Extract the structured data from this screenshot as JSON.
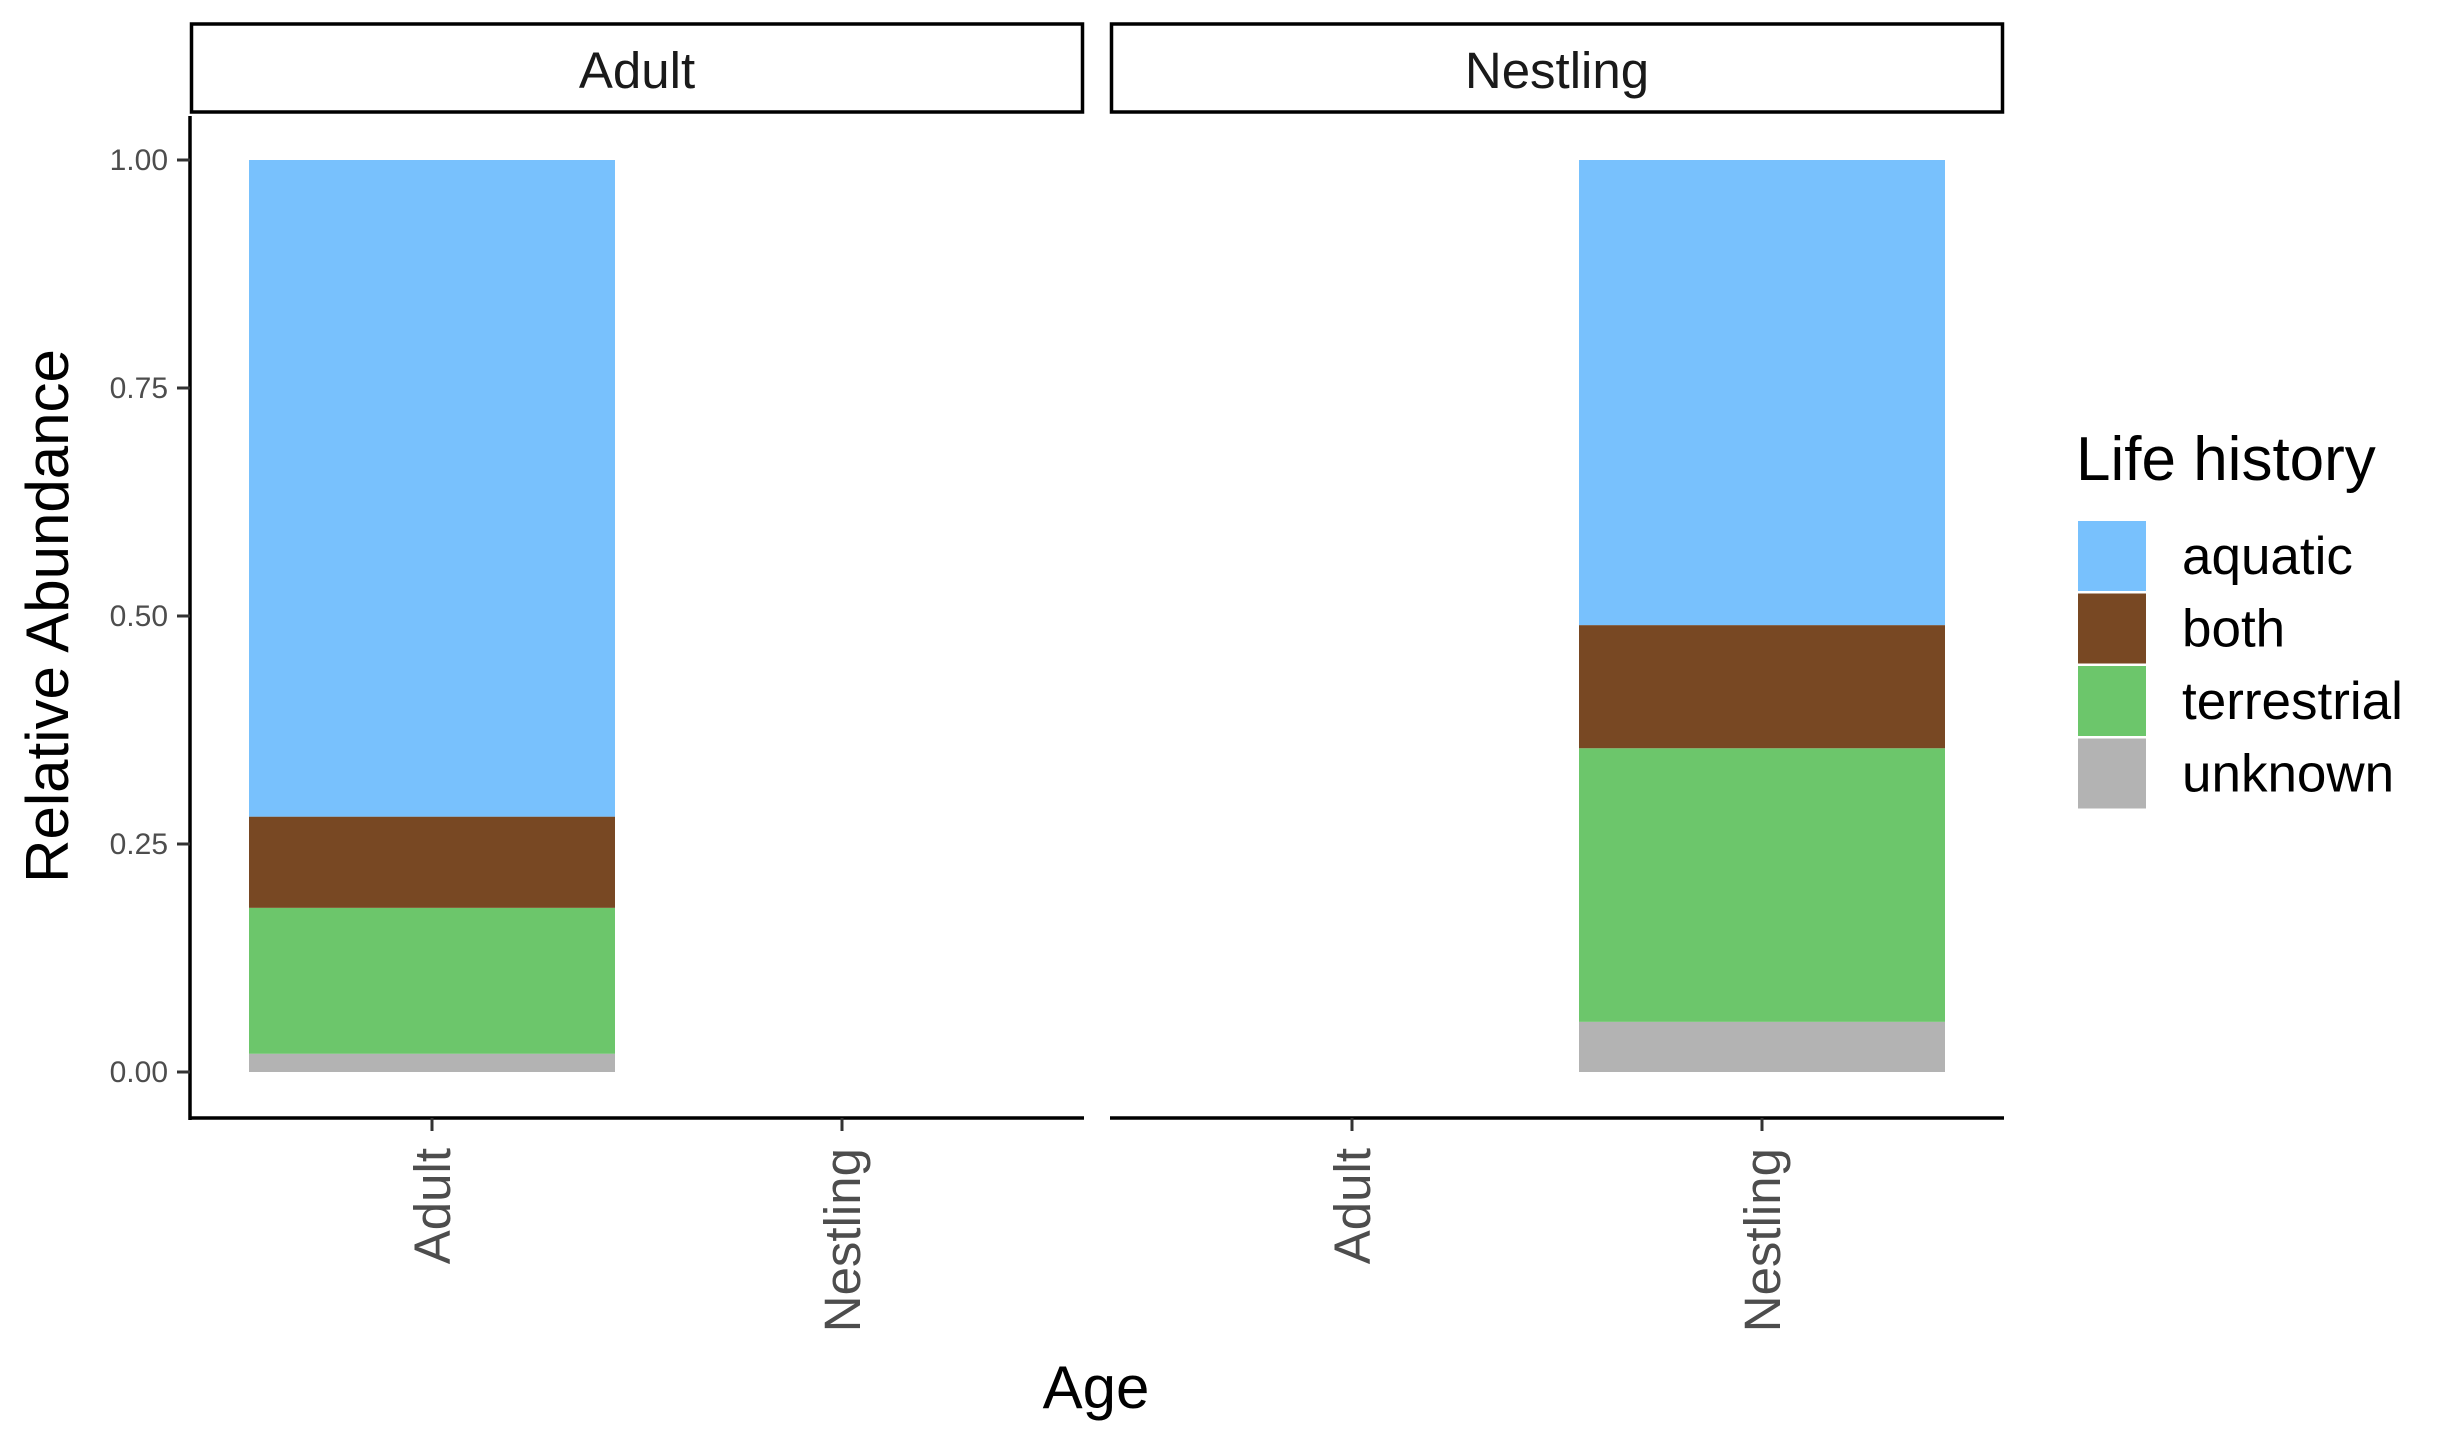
{
  "chart_data": {
    "type": "bar",
    "stacked": true,
    "facets": [
      "Adult",
      "Nestling"
    ],
    "categories": [
      "Adult",
      "Nestling"
    ],
    "xlabel": "Age",
    "ylabel": "Relative Abundance",
    "ylim": [
      0,
      1
    ],
    "y_ticks": [
      "0.00",
      "0.25",
      "0.50",
      "0.75",
      "1.00"
    ],
    "y_tick_values": [
      0,
      0.25,
      0.5,
      0.75,
      1
    ],
    "legend": {
      "title": "Life history",
      "position": "right"
    },
    "grid": false,
    "series": [
      {
        "name": "unknown",
        "color": "#b3b3b3",
        "values": {
          "Adult": {
            "Adult": 0.02
          },
          "Nestling": {
            "Nestling": 0.055
          }
        }
      },
      {
        "name": "terrestrial",
        "color": "#6cc66b",
        "values": {
          "Adult": {
            "Adult": 0.16
          },
          "Nestling": {
            "Nestling": 0.3
          }
        }
      },
      {
        "name": "both",
        "color": "#784823",
        "values": {
          "Adult": {
            "Adult": 0.1
          },
          "Nestling": {
            "Nestling": 0.135
          }
        }
      },
      {
        "name": "aquatic",
        "color": "#78c1fd",
        "values": {
          "Adult": {
            "Adult": 0.72
          },
          "Nestling": {
            "Nestling": 0.51
          }
        }
      }
    ],
    "legend_order": [
      "aquatic",
      "both",
      "terrestrial",
      "unknown"
    ]
  }
}
